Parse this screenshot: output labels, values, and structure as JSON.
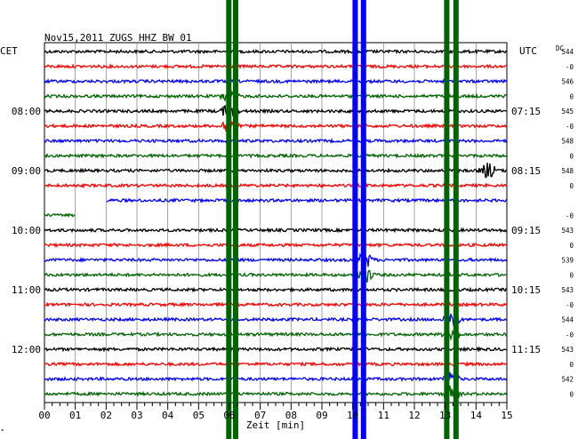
{
  "header": {
    "title": "Nov15,2011   ZUGS HHZ BW 01",
    "left_zone": "CET",
    "right_zone": "UTC",
    "dc_label": "DC"
  },
  "chart_data": {
    "type": "line",
    "title": "Nov15,2011   ZUGS HHZ BW 01",
    "xlabel": "Zeit [min]",
    "xlim": [
      0,
      15
    ],
    "x_ticks": [
      "00",
      "01",
      "02",
      "03",
      "04",
      "05",
      "06",
      "07",
      "08",
      "09",
      "10",
      "11",
      "12",
      "13",
      "14",
      "15"
    ],
    "trace_count": 24,
    "trace_colors": [
      "#000000",
      "#ff0000",
      "#0000ff",
      "#006400"
    ],
    "left_time_labels": [
      {
        "trace": 4,
        "label": "08:00"
      },
      {
        "trace": 8,
        "label": "09:00"
      },
      {
        "trace": 12,
        "label": "10:00"
      },
      {
        "trace": 16,
        "label": "11:00"
      },
      {
        "trace": 20,
        "label": "12:00"
      }
    ],
    "right_time_labels": [
      {
        "trace": 4,
        "label": "07:15"
      },
      {
        "trace": 8,
        "label": "08:15"
      },
      {
        "trace": 12,
        "label": "09:15"
      },
      {
        "trace": 16,
        "label": "10:15"
      },
      {
        "trace": 20,
        "label": "11:15"
      }
    ],
    "dc_values": [
      "544",
      "-0",
      "546",
      "0",
      "545",
      "-0",
      "548",
      "0",
      "548",
      "0",
      "",
      "-0",
      "543",
      "0",
      "539",
      "0",
      "543",
      "-0",
      "544",
      "-0",
      "543",
      "0",
      "542",
      "0"
    ],
    "events": [
      {
        "x": 6.0,
        "color": "#006400",
        "traces": [
          3,
          4,
          5
        ],
        "label": ""
      },
      {
        "x": 10.4,
        "color": "#0000ff",
        "traces": [
          14,
          15
        ],
        "label": ""
      },
      {
        "x": 13.2,
        "color": "#006400",
        "traces": [
          18,
          19,
          22,
          23
        ],
        "label": ""
      },
      {
        "x": 14.4,
        "color": "#000000",
        "traces": [
          8
        ],
        "label": ""
      }
    ],
    "saturated_lines": [
      {
        "x": 5.98,
        "color": "#006400"
      },
      {
        "x": 6.2,
        "color": "#006400"
      },
      {
        "x": 10.08,
        "color": "#0000ff"
      },
      {
        "x": 10.35,
        "color": "#0000ff"
      },
      {
        "x": 13.05,
        "color": "#006400"
      },
      {
        "x": 13.35,
        "color": "#006400"
      }
    ],
    "gaps": [
      {
        "trace": 10,
        "x_start": 0,
        "x_end": 2.0
      },
      {
        "trace": 11,
        "x_start": 1.0,
        "x_end": 15
      }
    ]
  }
}
